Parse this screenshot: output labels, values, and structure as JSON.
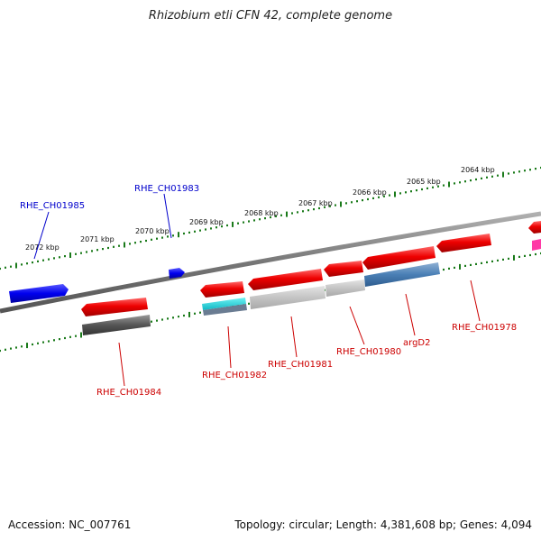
{
  "title": "Rhizobium etli CFN 42, complete genome",
  "footer": {
    "accession": "Accession: NC_007761",
    "summary": "Topology: circular; Length: 4,381,608 bp; Genes: 4,094"
  },
  "colors": {
    "forward_gene": "#0000ee",
    "reverse_gene": "#ee0000",
    "ruler_tick": "#1a7a1a",
    "backbone": "#777777",
    "forward_label": "#0000cc",
    "reverse_label": "#cc0000"
  },
  "ruler_labels": [
    "2072 kbp",
    "2071 kbp",
    "2070 kbp",
    "2069 kbp",
    "2068 kbp",
    "2067 kbp",
    "2066 kbp",
    "2065 kbp",
    "2064 kbp"
  ],
  "gene_labels": {
    "forward": [
      "RHE_CH01985",
      "RHE_CH01983"
    ],
    "reverse": [
      "RHE_CH01984",
      "RHE_CH01982",
      "RHE_CH01981",
      "RHE_CH01980",
      "argD2",
      "RHE_CH01978"
    ]
  }
}
